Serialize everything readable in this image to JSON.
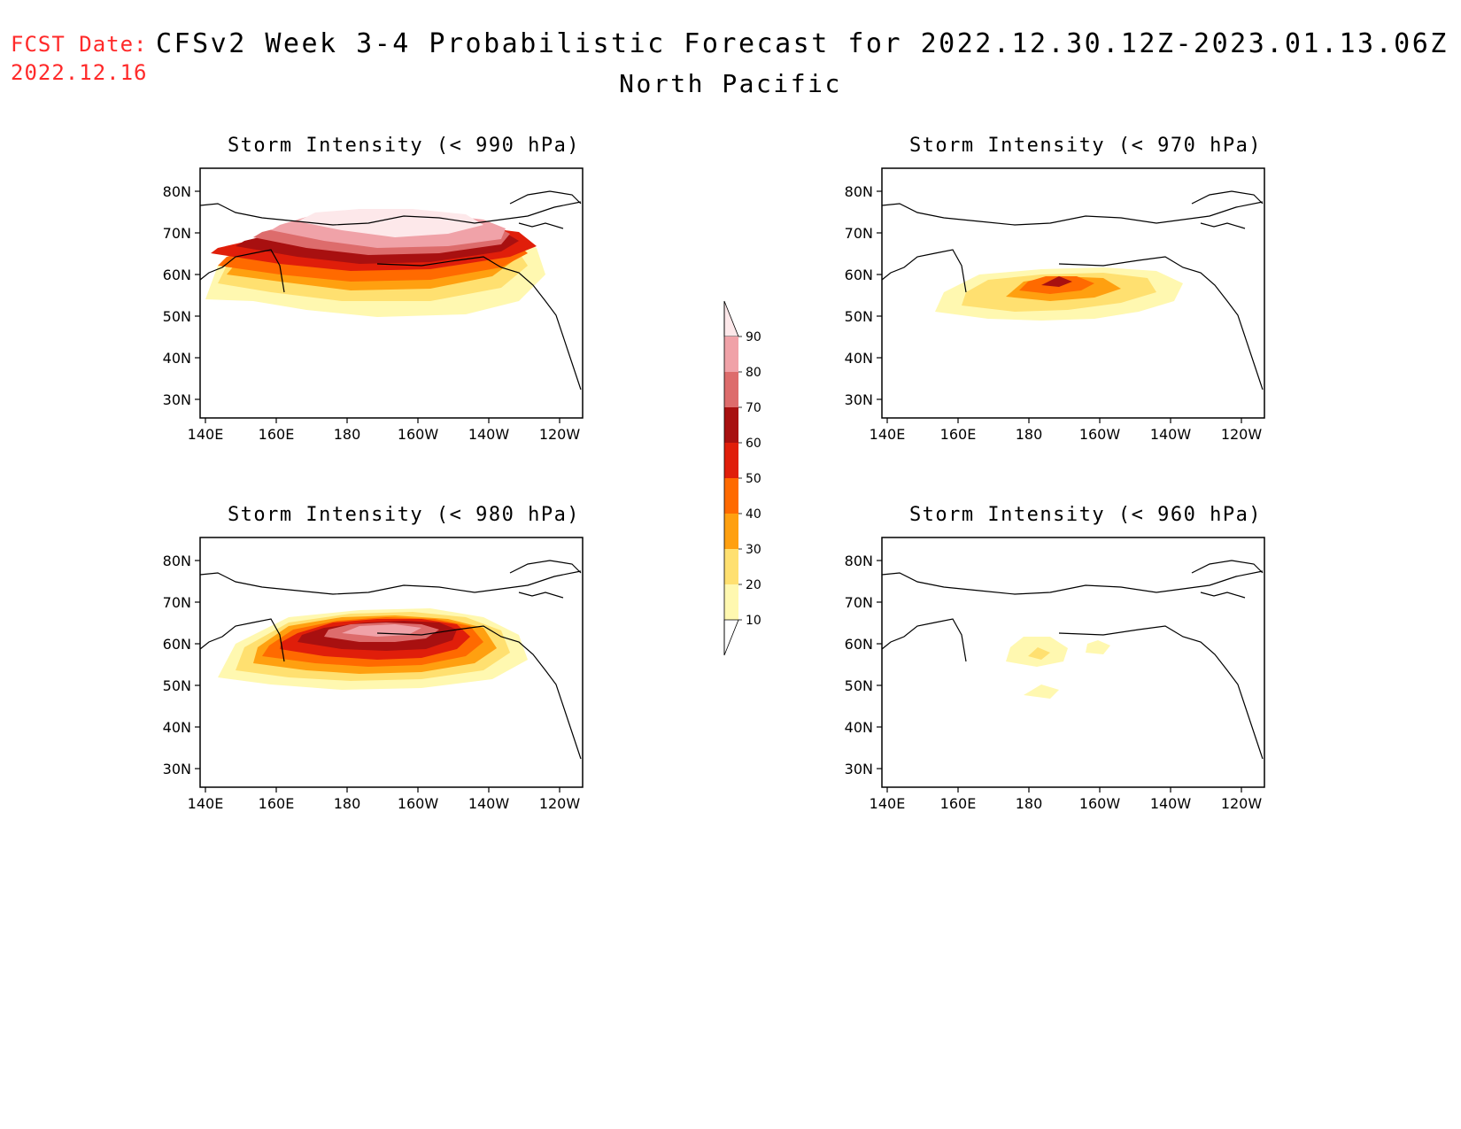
{
  "header": {
    "fcst_label": "FCST Date:",
    "fcst_date": "2022.12.16",
    "title": "CFSv2 Week 3-4 Probabilistic Forecast for 2022.12.30.12Z-2023.01.13.06Z",
    "region": "North Pacific"
  },
  "axes": {
    "lat_labels": [
      "80N",
      "70N",
      "60N",
      "50N",
      "40N",
      "30N"
    ],
    "lon_labels": [
      "140E",
      "160E",
      "180",
      "160W",
      "140W",
      "120W"
    ]
  },
  "panels": [
    {
      "title": "Storm Intensity (< 990 hPa)",
      "threshold_hPa": 990,
      "peak_prob": 90
    },
    {
      "title": "Storm Intensity (< 970 hPa)",
      "threshold_hPa": 970,
      "peak_prob": 60
    },
    {
      "title": "Storm Intensity (< 980 hPa)",
      "threshold_hPa": 980,
      "peak_prob": 80
    },
    {
      "title": "Storm Intensity (< 960 hPa)",
      "threshold_hPa": 960,
      "peak_prob": 20
    }
  ],
  "colorbar": {
    "labels": [
      "90",
      "80",
      "70",
      "60",
      "50",
      "40",
      "30",
      "20",
      "10"
    ],
    "colors": [
      "#fde8ea",
      "#f0a2a8",
      "#dd6c6c",
      "#a81010",
      "#e01e0a",
      "#ff6a00",
      "#ffa010",
      "#ffe070",
      "#fff8b0"
    ]
  }
}
